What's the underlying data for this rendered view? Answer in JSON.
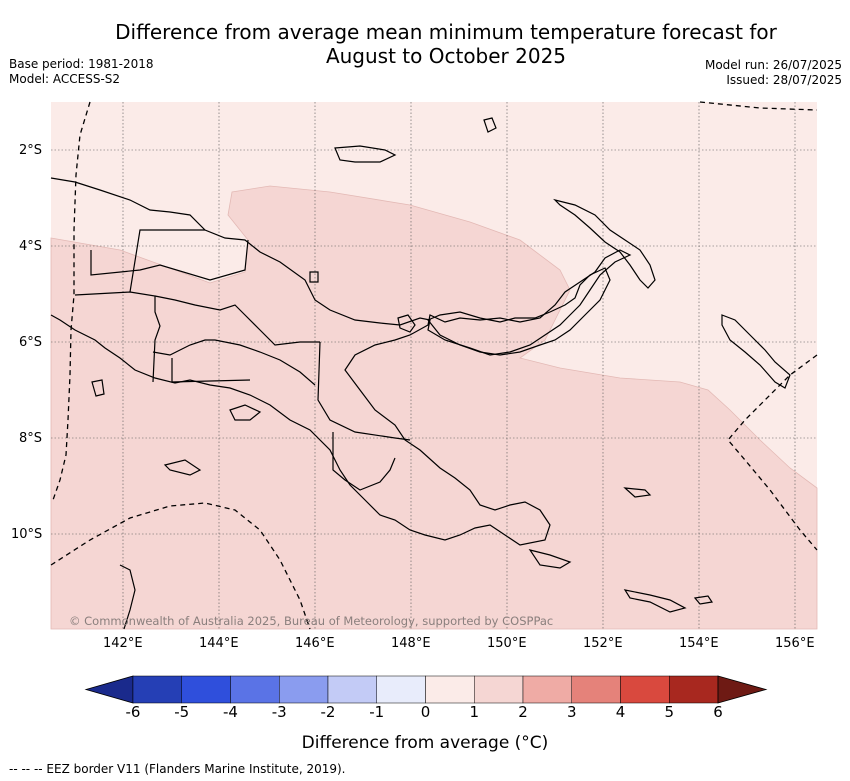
{
  "title_line1": "Difference from average mean minimum temperature forecast for",
  "title_line2": "August to October 2025",
  "base_period": "Base period: 1981-2018",
  "model": "Model: ACCESS-S2",
  "model_run": "Model run: 26/07/2025",
  "issued": "Issued: 28/07/2025",
  "copyright": "© Commonwealth of Australia 2025, Bureau of Meteorology, supported by COSPPac",
  "lat_labels": [
    "2°S",
    "4°S",
    "6°S",
    "8°S",
    "10°S"
  ],
  "lon_labels": [
    "142°E",
    "144°E",
    "146°E",
    "148°E",
    "150°E",
    "152°E",
    "154°E",
    "156°E"
  ],
  "colorbar": {
    "ticks": [
      "-6",
      "-5",
      "-4",
      "-3",
      "-2",
      "-1",
      "0",
      "1",
      "2",
      "3",
      "4",
      "5",
      "6"
    ],
    "colors": [
      "#1a2a8c",
      "#253fb5",
      "#2f4fdc",
      "#5a73e6",
      "#8a9cef",
      "#c3cbf6",
      "#e8ecfb",
      "#fbebe8",
      "#f5d6d3",
      "#efaba5",
      "#e5827a",
      "#d9493e",
      "#a8281f",
      "#6e1a14"
    ],
    "label": "Difference from average (°C)"
  },
  "footer": "--  --  -- EEZ border V11 (Flanders Marine Institute, 2019).",
  "colors": {
    "band_0_1": "#fbebe8",
    "band_1_2": "#f5d6d3"
  }
}
